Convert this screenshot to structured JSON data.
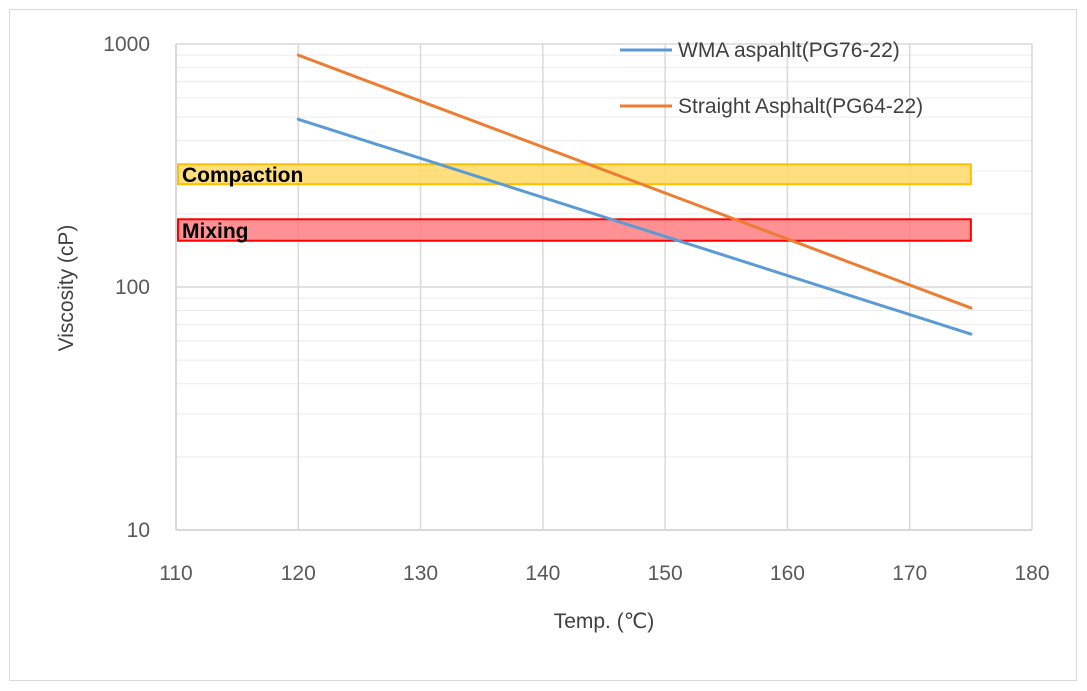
{
  "chart_data": {
    "type": "line",
    "yscale": "log",
    "xlabel": "Temp. (℃)",
    "ylabel": "Viscosity (cP)",
    "xlim": [
      110,
      180
    ],
    "ylim": [
      10,
      1000
    ],
    "xticks": [
      {
        "value": 110,
        "label": "110"
      },
      {
        "value": 120,
        "label": "120"
      },
      {
        "value": 130,
        "label": "130"
      },
      {
        "value": 140,
        "label": "140"
      },
      {
        "value": 150,
        "label": "150"
      },
      {
        "value": 160,
        "label": "160"
      },
      {
        "value": 170,
        "label": "170"
      },
      {
        "value": 180,
        "label": "180"
      }
    ],
    "yticks": [
      {
        "value": 10,
        "label": "10"
      },
      {
        "value": 100,
        "label": "100"
      },
      {
        "value": 1000,
        "label": "1000"
      }
    ],
    "legend_position": "top-right",
    "series": [
      {
        "name": "WMA aspahlt(PG76-22)",
        "color": "#5b9bd5",
        "points": [
          {
            "x": 120,
            "y": 490
          },
          {
            "x": 175,
            "y": 64
          }
        ]
      },
      {
        "name": "Straight Asphalt(PG64-22)",
        "color": "#ed7d31",
        "points": [
          {
            "x": 120,
            "y": 900
          },
          {
            "x": 175,
            "y": 82
          }
        ]
      }
    ],
    "bands": [
      {
        "label": "Compaction",
        "x_range": [
          110,
          175
        ],
        "y_range": [
          265,
          320
        ],
        "fill": "#ffd966",
        "stroke": "#ffc000"
      },
      {
        "label": "Mixing",
        "x_range": [
          110,
          175
        ],
        "y_range": [
          155,
          190
        ],
        "fill": "#ff7c80",
        "stroke": "#ff0000"
      }
    ]
  }
}
